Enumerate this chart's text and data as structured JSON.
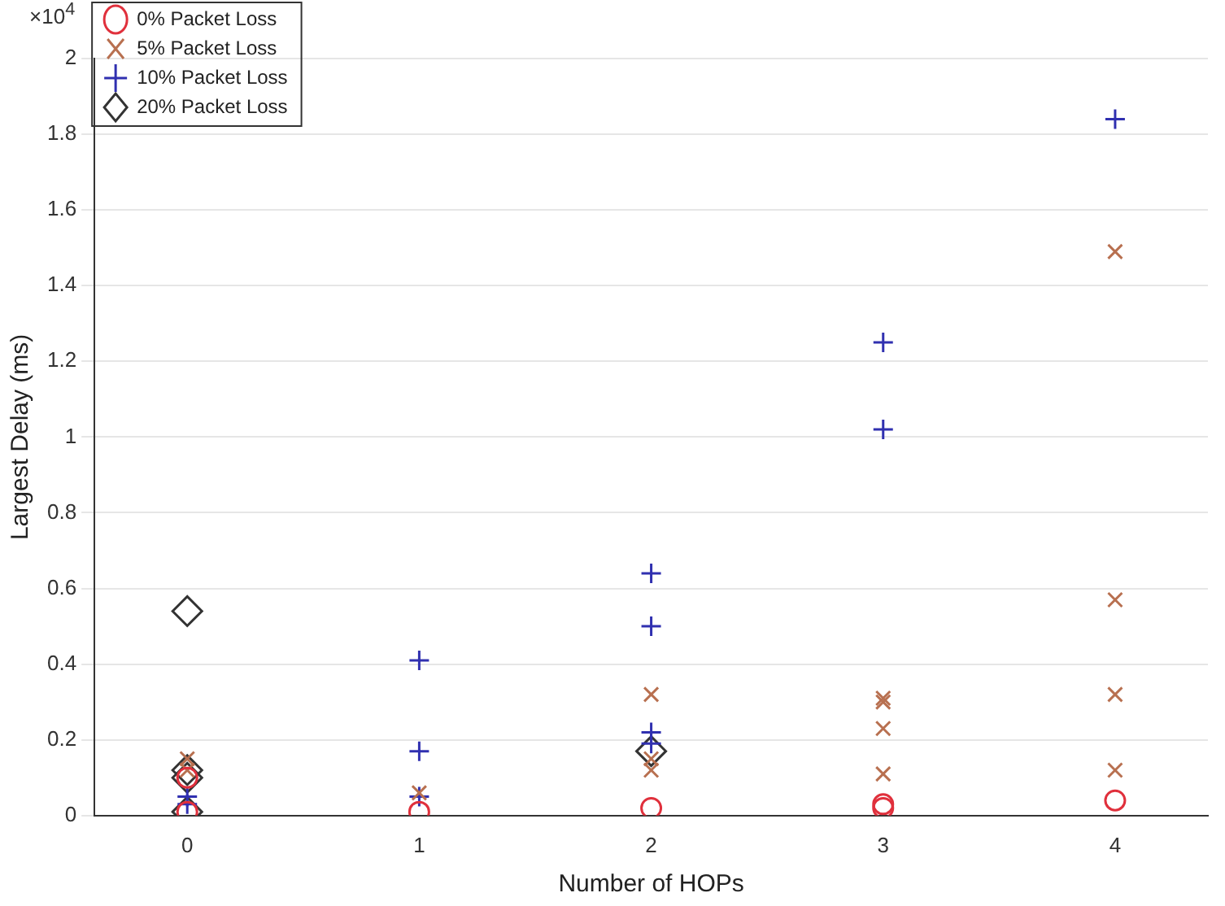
{
  "chart_data": {
    "type": "scatter",
    "xlabel": "Number of HOPs",
    "ylabel": "Largest Delay (ms)",
    "annotations": [
      "×10$^{4}$"
    ],
    "xlim": [
      -0.4,
      4.4
    ],
    "xticks": [
      0,
      1,
      2,
      3,
      4
    ],
    "ylim": [
      0,
      2
    ],
    "yticks": [
      0,
      0.2,
      0.4,
      0.6,
      0.8,
      1,
      1.2,
      1.4,
      1.6,
      1.8,
      2
    ],
    "grid": "y",
    "legend": "top left",
    "series": [
      {
        "name": "0% Packet Loss",
        "color": "#e0303c",
        "marker": "circle",
        "x": [
          0,
          0,
          1,
          2,
          3,
          3,
          4
        ],
        "values": [
          0.01,
          0.1,
          0.01,
          0.02,
          0.03,
          0.02,
          0.04
        ]
      },
      {
        "name": "5% Packet Loss",
        "color": "#b87050",
        "marker": "x",
        "x": [
          0,
          0,
          1,
          2,
          2,
          2,
          3,
          3,
          3,
          3,
          4,
          4,
          4,
          4
        ],
        "values": [
          0.15,
          0.12,
          0.06,
          0.32,
          0.15,
          0.12,
          0.31,
          0.3,
          0.23,
          0.11,
          1.49,
          0.57,
          0.32,
          0.12
        ]
      },
      {
        "name": "10% Packet Loss",
        "color": "#3030b0",
        "marker": "cross",
        "x": [
          0,
          0,
          1,
          1,
          1,
          2,
          2,
          2,
          2,
          3,
          3,
          4
        ],
        "values": [
          0.05,
          0.03,
          0.41,
          0.17,
          0.05,
          0.64,
          0.5,
          0.22,
          0.19,
          1.25,
          1.02,
          1.84
        ]
      },
      {
        "name": "20% Packet Loss",
        "color": "#333333",
        "marker": "diamond",
        "x": [
          0,
          0,
          0,
          0,
          2
        ],
        "values": [
          0.54,
          0.12,
          0.1,
          0.01,
          0.17
        ]
      }
    ]
  }
}
